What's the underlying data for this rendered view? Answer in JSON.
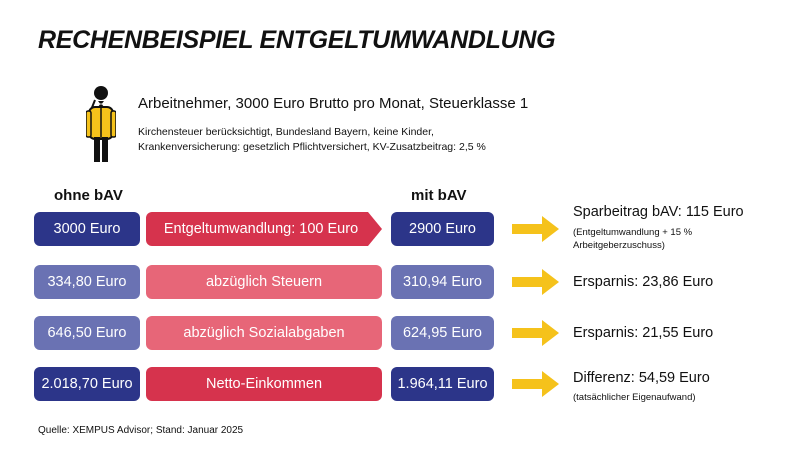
{
  "title": "RECHENBEISPIEL ENTGELTUMWANDLUNG",
  "person": {
    "icon": "employee-icon",
    "headline": "Arbeitnehmer, 3000 Euro Brutto pro Monat, Steuerklasse 1",
    "details_line1": "Kirchensteuer berücksichtigt, Bundesland Bayern, keine Kinder,",
    "details_line2": "Krankenversicherung: gesetzlich Pflichtversichert, KV-Zusatzbeitrag: 2,5 %"
  },
  "columns": {
    "without": "ohne bAV",
    "with": "mit bAV"
  },
  "rows": [
    {
      "without": "3000 Euro",
      "label": "Entgeltumwandlung: 100 Euro",
      "with": "2900 Euro",
      "result": "Sparbeitrag bAV: 115 Euro",
      "note_line1": "(Entgeltumwandlung + 15 %",
      "note_line2": "Arbeitgeberzuschuss)"
    },
    {
      "without": "334,80 Euro",
      "label": "abzüglich Steuern",
      "with": "310,94 Euro",
      "result": "Ersparnis: 23,86 Euro"
    },
    {
      "without": "646,50 Euro",
      "label": "abzüglich Sozialabgaben",
      "with": "624,95 Euro",
      "result": "Ersparnis: 21,55 Euro"
    },
    {
      "without": "2.018,70 Euro",
      "label": "Netto-Einkommen",
      "with": "1.964,11 Euro",
      "result": "Differenz: 54,59 Euro",
      "note_line1": "(tatsächlicher Eigenaufwand)"
    }
  ],
  "source": "Quelle: XEMPUS Advisor; Stand: Januar 2025",
  "colors": {
    "dark_blue": "#2c3589",
    "mid_blue": "#6a72b3",
    "red": "#d6334d",
    "pink": "#e76678",
    "arrow_yellow": "#f5c21b"
  }
}
